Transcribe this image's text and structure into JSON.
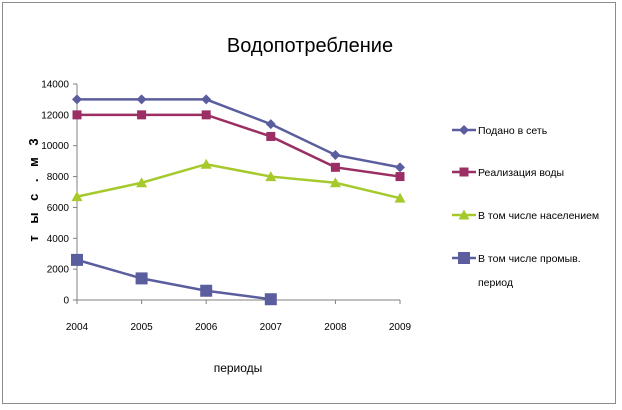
{
  "chart_data": {
    "type": "line",
    "title": "Водопотребление",
    "xlabel": "периоды",
    "ylabel": "т ы с . м 3",
    "categories": [
      "2004",
      "2005",
      "2006",
      "2007",
      "2008",
      "2009"
    ],
    "ylim": [
      0,
      14000
    ],
    "yticks": [
      "0",
      "2000",
      "4000",
      "6000",
      "8000",
      "10000",
      "12000",
      "14000"
    ],
    "grid": false,
    "legend_position": "right",
    "series": [
      {
        "name": "Подано в сеть",
        "values": [
          13000,
          13000,
          13000,
          11400,
          9400,
          8600
        ],
        "color": "#5b5e9e",
        "marker": "diamond"
      },
      {
        "name": "Реализация воды",
        "values": [
          12000,
          12000,
          12000,
          10600,
          8600,
          8000
        ],
        "color": "#9b2f63",
        "marker": "square"
      },
      {
        "name": "В том числе населением",
        "values": [
          6700,
          7600,
          8800,
          8000,
          7600,
          6600
        ],
        "color": "#a6c92c",
        "marker": "triangle"
      },
      {
        "name": "В том числе промыв. период",
        "values": [
          2600,
          1400,
          600,
          50,
          null,
          null
        ],
        "color": "#5b5e9e",
        "marker": "bigsquare"
      }
    ]
  }
}
